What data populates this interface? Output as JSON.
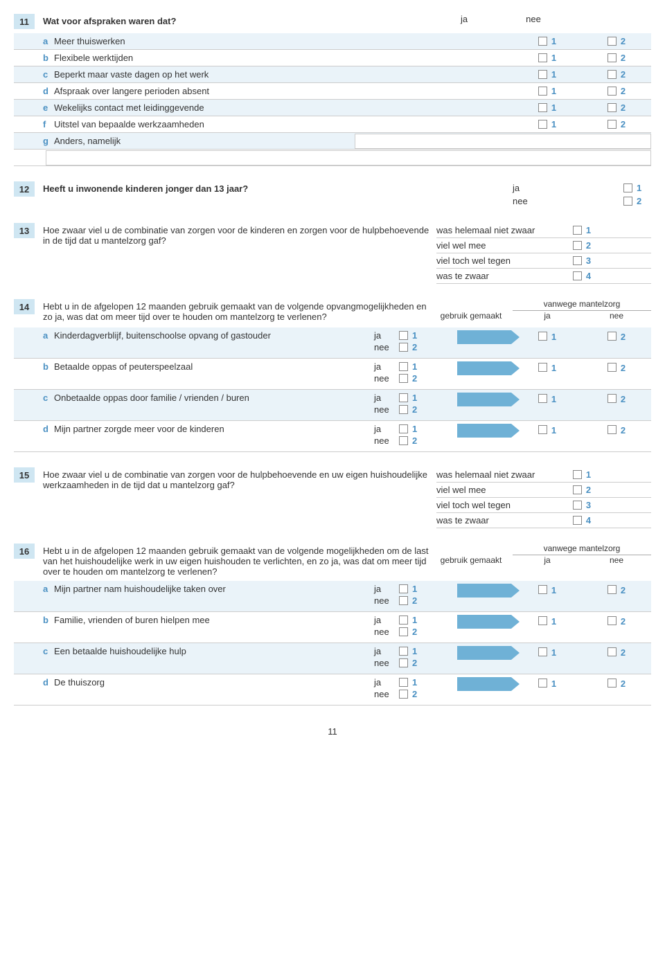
{
  "page_number": "11",
  "colors": {
    "accent": "#4a90c2",
    "box_bg": "#cfe6f2",
    "row_bg": "#eaf3f9",
    "arrow": "#6fb1d6"
  },
  "q11": {
    "num": "11",
    "question": "Wat voor afspraken waren dat?",
    "ja": "ja",
    "nee": "nee",
    "items": [
      {
        "letter": "a",
        "label": "Meer thuiswerken",
        "v1": "1",
        "v2": "2"
      },
      {
        "letter": "b",
        "label": "Flexibele werktijden",
        "v1": "1",
        "v2": "2"
      },
      {
        "letter": "c",
        "label": "Beperkt maar vaste dagen op het werk",
        "v1": "1",
        "v2": "2"
      },
      {
        "letter": "d",
        "label": "Afspraak over langere perioden absent",
        "v1": "1",
        "v2": "2"
      },
      {
        "letter": "e",
        "label": "Wekelijks contact met leidinggevende",
        "v1": "1",
        "v2": "2"
      },
      {
        "letter": "f",
        "label": "Uitstel van bepaalde werkzaamheden",
        "v1": "1",
        "v2": "2"
      },
      {
        "letter": "g",
        "label": "Anders, namelijk"
      }
    ]
  },
  "q12": {
    "num": "12",
    "question": "Heeft u inwonende kinderen jonger dan 13 jaar?",
    "opts": [
      {
        "label": "ja",
        "v": "1"
      },
      {
        "label": "nee",
        "v": "2"
      }
    ]
  },
  "q13": {
    "num": "13",
    "question": "Hoe zwaar viel u de combinatie van zorgen voor de kinderen en zorgen voor de hulpbehoevende in de tijd dat u mantelzorg gaf?",
    "opts": [
      {
        "label": "was helemaal niet zwaar",
        "v": "1"
      },
      {
        "label": "viel wel mee",
        "v": "2"
      },
      {
        "label": "viel toch wel tegen",
        "v": "3"
      },
      {
        "label": "was te zwaar",
        "v": "4"
      }
    ]
  },
  "q14": {
    "num": "14",
    "question": "Hebt u in de afgelopen 12 maanden gebruik gemaakt van de volgende opvangmogelijkheden en zo ja, was dat om meer tijd over te houden om mantelzorg te verlenen?",
    "h_left": "gebruik gemaakt",
    "h_right": "vanwege mantelzorg",
    "h_ja": "ja",
    "h_nee": "nee",
    "ja": "ja",
    "nee": "nee",
    "items": [
      {
        "letter": "a",
        "label": "Kinderdagverblijf, buitenschoolse opvang of gastouder"
      },
      {
        "letter": "b",
        "label": "Betaalde oppas of peuterspeelzaal"
      },
      {
        "letter": "c",
        "label": "Onbetaalde oppas door familie / vrienden / buren"
      },
      {
        "letter": "d",
        "label": "Mijn partner zorgde meer voor de kinderen"
      }
    ],
    "one": "1",
    "two": "2"
  },
  "q15": {
    "num": "15",
    "question": "Hoe zwaar viel u de combinatie van zorgen voor de hulpbehoevende en uw eigen huishoudelijke werkzaamheden in de tijd dat u mantelzorg gaf?",
    "opts": [
      {
        "label": "was helemaal niet zwaar",
        "v": "1"
      },
      {
        "label": "viel wel mee",
        "v": "2"
      },
      {
        "label": "viel toch wel tegen",
        "v": "3"
      },
      {
        "label": "was te zwaar",
        "v": "4"
      }
    ]
  },
  "q16": {
    "num": "16",
    "question": "Hebt u in de afgelopen 12 maanden gebruik gemaakt van de volgende mogelijkheden om de last van het huishoudelijke werk in uw eigen huishouden te verlichten, en zo ja, was dat om meer tijd over te houden om mantelzorg te verlenen?",
    "h_left": "gebruik gemaakt",
    "h_right": "vanwege mantelzorg",
    "h_ja": "ja",
    "h_nee": "nee",
    "ja": "ja",
    "nee": "nee",
    "items": [
      {
        "letter": "a",
        "label": "Mijn partner nam huishoudelijke taken over"
      },
      {
        "letter": "b",
        "label": "Familie, vrienden of buren hielpen mee"
      },
      {
        "letter": "c",
        "label": "Een betaalde huishoudelijke hulp"
      },
      {
        "letter": "d",
        "label": "De thuiszorg"
      }
    ],
    "one": "1",
    "two": "2"
  }
}
